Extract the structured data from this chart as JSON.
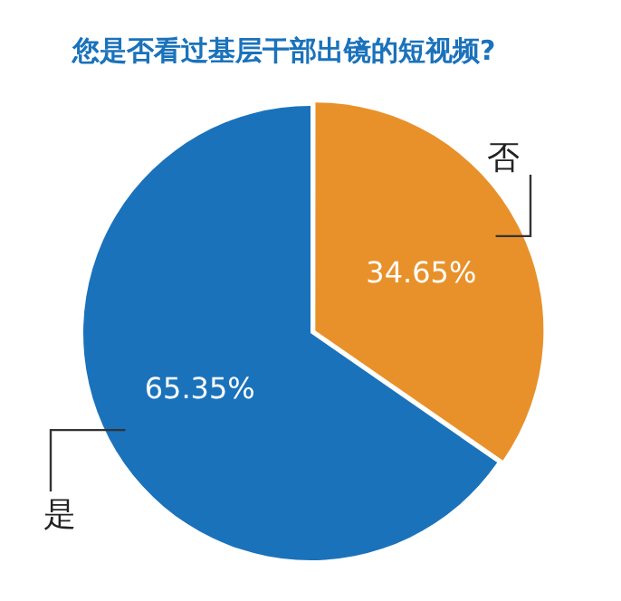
{
  "chart_data": {
    "type": "pie",
    "title": "您是否看过基层干部出镜的短视频?",
    "categories": [
      "否",
      "是"
    ],
    "values": [
      34.65,
      65.35
    ],
    "colors": [
      "#e8912a",
      "#1a72bb"
    ],
    "value_labels": [
      "34.65%",
      "65.35%"
    ],
    "legend": false
  }
}
